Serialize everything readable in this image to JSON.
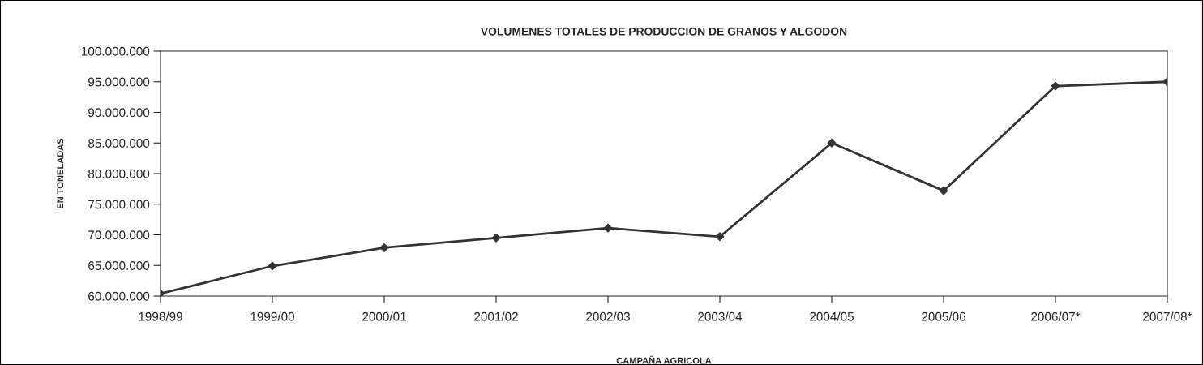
{
  "chart_data": {
    "type": "line",
    "title": "VOLUMENES TOTALES DE PRODUCCION DE GRANOS Y ALGODON",
    "xlabel": "CAMPAÑA AGRICOLA",
    "ylabel": "EN TONELADAS",
    "categories": [
      "1998/99",
      "1999/00",
      "2000/01",
      "2001/02",
      "2002/03",
      "2003/04",
      "2004/05",
      "2005/06",
      "2006/07*",
      "2007/08*"
    ],
    "series": [
      {
        "color": "#333333",
        "values": [
          60400000,
          64900000,
          67900000,
          69500000,
          71100000,
          69700000,
          85000000,
          77200000,
          94300000,
          95000000
        ]
      }
    ],
    "ylim": [
      60000000,
      100000000
    ],
    "yticks": [
      {
        "value": 60000000,
        "label": "60.000.000"
      },
      {
        "value": 65000000,
        "label": "65.000.000"
      },
      {
        "value": 70000000,
        "label": "70.000.000"
      },
      {
        "value": 75000000,
        "label": "75.000.000"
      },
      {
        "value": 80000000,
        "label": "80.000.000"
      },
      {
        "value": 85000000,
        "label": "85.000.000"
      },
      {
        "value": 90000000,
        "label": "90.000.000"
      },
      {
        "value": 95000000,
        "label": "95.000.000"
      },
      {
        "value": 100000000,
        "label": "100.000.000"
      }
    ],
    "grid": false,
    "marker": "diamond",
    "line_style": "solid"
  }
}
